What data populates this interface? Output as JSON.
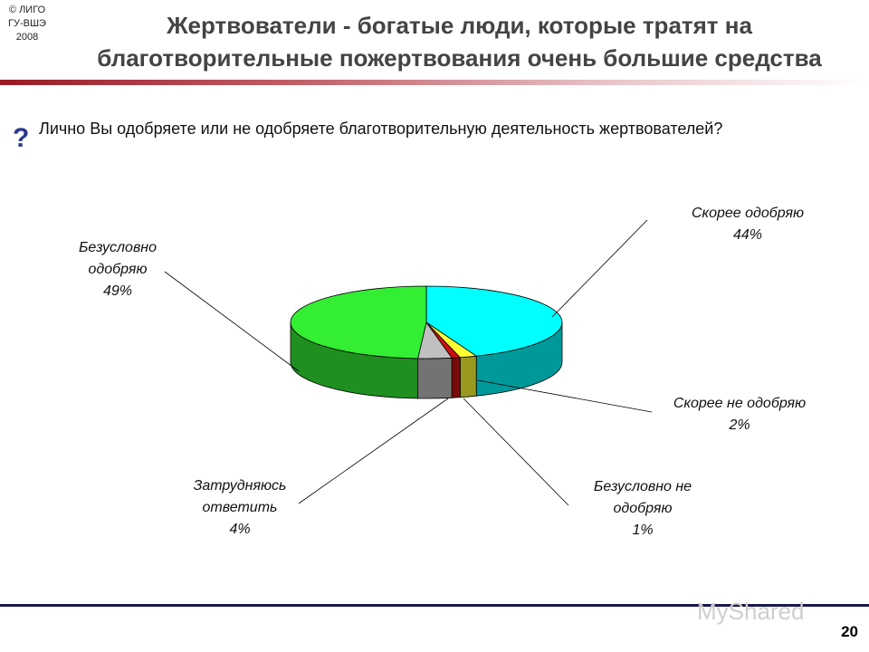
{
  "header": {
    "copyright_lines": [
      "© ЛИГО",
      "ГУ-ВШЭ",
      "2008"
    ],
    "title_line1": "Жертвователи - богатые люди, которые тратят на",
    "title_line2": "благотворительные пожертвования очень большие средства"
  },
  "question": {
    "icon": "question-mark-icon",
    "text": "Лично Вы одобряете или не одобряете благотворительную деятельность жертвователей?"
  },
  "chart_data": {
    "type": "pie",
    "three_d": true,
    "slices": [
      {
        "label_lines": [
          "Скорее одобряю"
        ],
        "value": 44,
        "value_label": "44%",
        "color": "#00ffff"
      },
      {
        "label_lines": [
          "Скорее не одобряю"
        ],
        "value": 2,
        "value_label": "2%",
        "color": "#ffff33"
      },
      {
        "label_lines": [
          "Безусловно не",
          "одобряю"
        ],
        "value": 1,
        "value_label": "1%",
        "color": "#cc1010"
      },
      {
        "label_lines": [
          "Затрудняюсь",
          "ответить"
        ],
        "value": 4,
        "value_label": "4%",
        "color": "#c0c0c0"
      },
      {
        "label_lines": [
          "Безусловно",
          "одобряю"
        ],
        "value": 49,
        "value_label": "49%",
        "color": "#33ee33"
      }
    ]
  },
  "footer": {
    "page_number": "20",
    "watermark": "MyShared"
  }
}
